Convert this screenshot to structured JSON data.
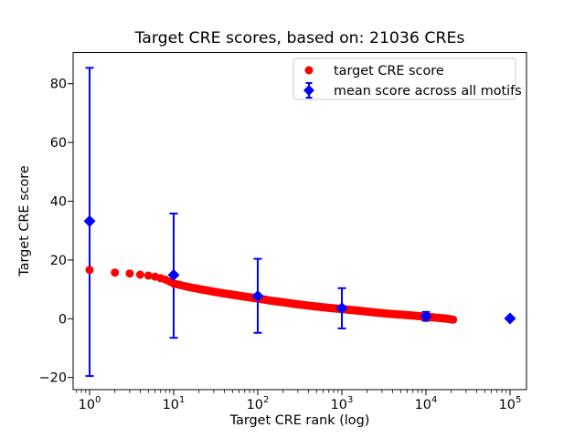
{
  "figure": {
    "background": "#ffffff"
  },
  "chart_data": {
    "type": "scatter",
    "title": "Target CRE scores, based on: 21036 CREs",
    "xlabel": "Target CRE rank (log)",
    "ylabel": "Target CRE score",
    "x_scale": "log",
    "xlim": [
      0.637,
      157000
    ],
    "ylim": [
      -24.2,
      90.6
    ],
    "x_major_ticks": [
      1,
      10,
      100,
      1000,
      10000,
      100000
    ],
    "x_tick_exponents": [
      0,
      1,
      2,
      3,
      4,
      5
    ],
    "y_ticks": [
      -20,
      0,
      20,
      40,
      60,
      80
    ],
    "grid": false,
    "legend_position": "upper right",
    "series": [
      {
        "name": "target CRE score",
        "marker": "circle",
        "color": "#ff0000",
        "n_points": 21036,
        "x_range": [
          1,
          21036
        ],
        "profile": [
          [
            1,
            16.6
          ],
          [
            2,
            15.7
          ],
          [
            3,
            15.4
          ],
          [
            4,
            15.0
          ],
          [
            5,
            14.7
          ],
          [
            6,
            14.3
          ],
          [
            7,
            13.8
          ],
          [
            8,
            13.3
          ],
          [
            10,
            12.0
          ],
          [
            13,
            11.2
          ],
          [
            17,
            10.5
          ],
          [
            22,
            9.9
          ],
          [
            30,
            9.2
          ],
          [
            40,
            8.6
          ],
          [
            55,
            8.0
          ],
          [
            75,
            7.4
          ],
          [
            100,
            6.9
          ],
          [
            140,
            6.2
          ],
          [
            200,
            5.6
          ],
          [
            300,
            4.9
          ],
          [
            450,
            4.3
          ],
          [
            700,
            3.7
          ],
          [
            1000,
            3.3
          ],
          [
            1500,
            2.8
          ],
          [
            2200,
            2.3
          ],
          [
            3300,
            1.8
          ],
          [
            5000,
            1.4
          ],
          [
            7500,
            1.0
          ],
          [
            10000,
            0.7
          ],
          [
            14000,
            0.3
          ],
          [
            18000,
            0.0
          ],
          [
            21036,
            -0.3
          ]
        ]
      },
      {
        "name": "mean score across all motifs",
        "marker": "diamond",
        "color": "#0000ff",
        "points": [
          {
            "x": 1,
            "y": 33.2,
            "lo": -19.5,
            "hi": 85.4
          },
          {
            "x": 10,
            "y": 14.9,
            "lo": -6.5,
            "hi": 35.8
          },
          {
            "x": 100,
            "y": 7.7,
            "lo": -4.8,
            "hi": 20.4
          },
          {
            "x": 1000,
            "y": 3.6,
            "lo": -3.3,
            "hi": 10.4
          },
          {
            "x": 10000,
            "y": 0.8,
            "lo": -0.7,
            "hi": 2.3
          },
          {
            "x": 100000,
            "y": 0.1,
            "lo": -0.2,
            "hi": 0.4
          }
        ]
      }
    ]
  },
  "colors": {
    "red_series": "#ff0000",
    "blue_series": "#0000ff",
    "axis": "#000000",
    "legend_border": "#cccccc",
    "legend_background": "#ffffff"
  }
}
